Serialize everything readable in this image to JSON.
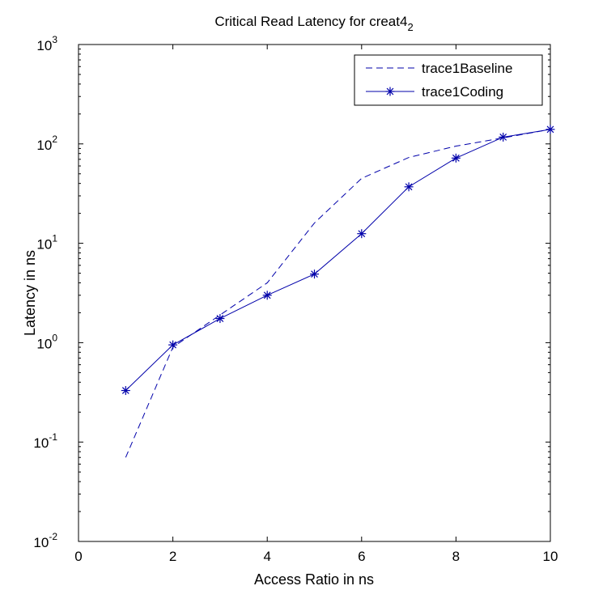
{
  "chart_data": {
    "type": "line",
    "title": "Critical Read Latency for creat4",
    "title_subscript": "2",
    "xlabel": "Access Ratio in ns",
    "ylabel": "Latency in ns",
    "xlim": [
      0,
      10
    ],
    "ylim": [
      0.01,
      1000
    ],
    "yscale": "log",
    "grid": false,
    "legend_position": "top-right",
    "x_ticks": [
      "0",
      "2",
      "4",
      "6",
      "8",
      "10"
    ],
    "y_ticks": [
      {
        "base": "10",
        "exp": "-2"
      },
      {
        "base": "10",
        "exp": "-1"
      },
      {
        "base": "10",
        "exp": "0"
      },
      {
        "base": "10",
        "exp": "1"
      },
      {
        "base": "10",
        "exp": "2"
      },
      {
        "base": "10",
        "exp": "3"
      }
    ],
    "series": [
      {
        "name": "trace1Baseline",
        "style": "dashed",
        "marker": "none",
        "color": "#0000aa",
        "x": [
          1,
          2,
          3,
          4,
          5,
          6,
          7,
          8,
          9,
          10
        ],
        "y": [
          0.07,
          0.9,
          1.9,
          4.0,
          16,
          45,
          73,
          95,
          115,
          140
        ]
      },
      {
        "name": "trace1Coding",
        "style": "solid",
        "marker": "asterisk",
        "color": "#0000aa",
        "x": [
          1,
          2,
          3,
          4,
          5,
          6,
          7,
          8,
          9,
          10
        ],
        "y": [
          0.33,
          0.95,
          1.75,
          3.0,
          4.9,
          12.5,
          37,
          72,
          117,
          140
        ]
      }
    ]
  }
}
